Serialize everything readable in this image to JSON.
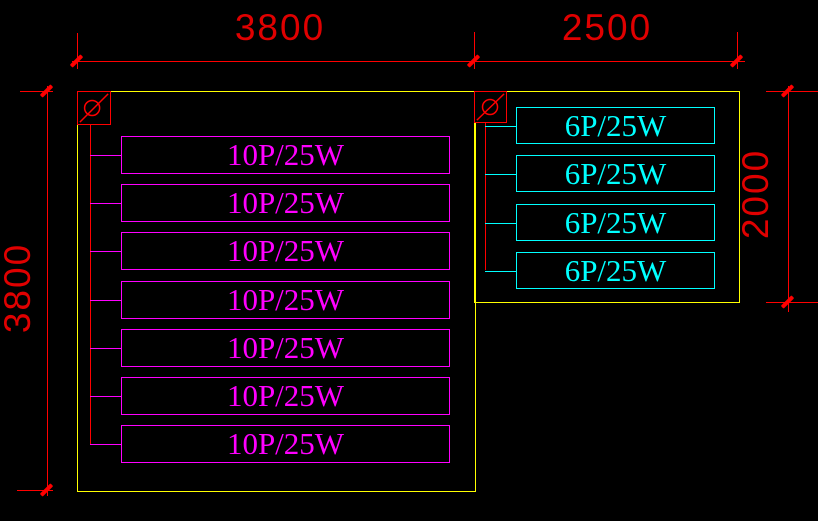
{
  "drawing": {
    "type": "cad-lighting-layout",
    "background": "#000000",
    "colors": {
      "wall_outline": "#ffff00",
      "dimension": "#ff0000",
      "dimension_text": "#e00000",
      "left_room_fixtures": "#ff00ff",
      "right_room_fixtures": "#00ffff"
    },
    "dimensions": {
      "top_left": "3800",
      "top_right": "2500",
      "left_side": "3800",
      "right_side": "2000"
    },
    "rooms": {
      "left": {
        "symbol": "circle-slash-switch",
        "fixtures": [
          "10P/25W",
          "10P/25W",
          "10P/25W",
          "10P/25W",
          "10P/25W",
          "10P/25W",
          "10P/25W"
        ]
      },
      "right": {
        "symbol": "circle-slash-switch",
        "fixtures": [
          "6P/25W",
          "6P/25W",
          "6P/25W",
          "6P/25W"
        ]
      }
    }
  }
}
